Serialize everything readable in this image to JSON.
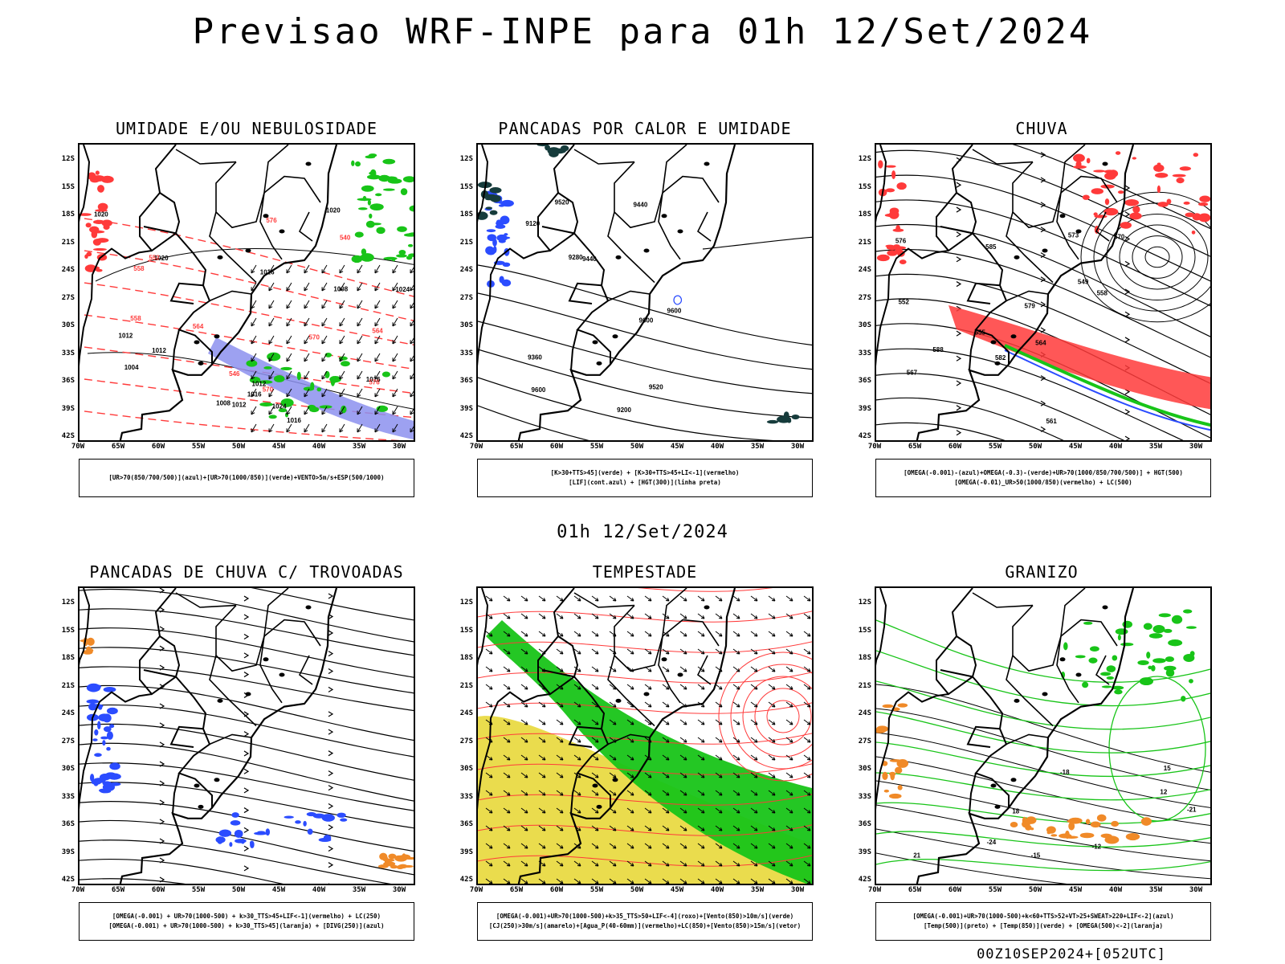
{
  "title": "Previsao WRF-INPE  para 01h 12/Set/2024",
  "mid_title": "01h 12/Set/2024",
  "footer": "00Z10SEP2024+[052UTC]",
  "axes": {
    "lat_ticks": [
      "12S",
      "15S",
      "18S",
      "21S",
      "24S",
      "27S",
      "30S",
      "33S",
      "36S",
      "39S",
      "42S"
    ],
    "lon_ticks": [
      "70W",
      "65W",
      "60W",
      "55W",
      "50W",
      "45W",
      "40W",
      "35W",
      "30W"
    ]
  },
  "colors": {
    "blue": "#2b4cff",
    "green": "#18c418",
    "red": "#ff3a3a",
    "yellow": "#e6d62e",
    "orange": "#f08a28",
    "lavender": "#8c90ee",
    "darkteal": "#163c3c"
  },
  "panels": [
    {
      "id": "umidade",
      "title": "UMIDADE E/OU NEBULOSIDADE",
      "legend": [
        "[UR>70(850/700/500)](azul)+[UR>70(1000/850)](verde)+VENTO>5m/s+ESP(500/1000)"
      ],
      "contour_labels": [
        "1008",
        "1012",
        "1016",
        "1020",
        "1024",
        "1004",
        "1016",
        "1012",
        "1008",
        "1020",
        "1012",
        "1016",
        "1012",
        "1016",
        "1020",
        "1024"
      ],
      "red_labels": [
        "576",
        "570",
        "564",
        "558",
        "552",
        "546",
        "540",
        "576",
        "570",
        "564",
        "558"
      ]
    },
    {
      "id": "pancadas-calor",
      "title": "PANCADAS POR CALOR E UMIDADE",
      "legend": [
        "[K>30+TTS>45](verde) + [K>30+TTS>45+LI<-1](vermelho)",
        "[LIF](cont.azul) + [HGT(300)](linha preta)"
      ],
      "contour_labels": [
        "9600",
        "9600",
        "9600",
        "9520",
        "9440",
        "9520",
        "9360",
        "9440",
        "9280",
        "9200",
        "9120"
      ]
    },
    {
      "id": "chuva",
      "title": "CHUVA",
      "legend": [
        "[OMEGA(-0.001)-(azul)+OMEGA(-0.3)-(verde)+UR>70(1000/850/700/500)] + HGT(500)",
        "[OMEGA(-0.01)_UR>50(1000/850)(vermelho) + LC(500)"
      ],
      "contour_labels": [
        "588",
        "585",
        "582",
        "579",
        "576",
        "573",
        "570",
        "567",
        "564",
        "561",
        "558",
        "555",
        "552",
        "549"
      ]
    },
    {
      "id": "trovoadas",
      "title": "PANCADAS DE CHUVA C/ TROVOADAS",
      "legend": [
        "[OMEGA(-0.001) + UR>70(1000-500) + k>30_TTS>45+LIF<-1](vermelho) + LC(250)",
        "[OMEGA(-0.001) + UR>70(1000-500) + k>30_TTS>45](laranja) + [DIVG(250)](azul)"
      ]
    },
    {
      "id": "tempestade",
      "title": "TEMPESTADE",
      "legend": [
        "[OMEGA(-0.001)+UR>70(1000-500)+k>35_TTS>50+LIF<-4](roxo)+[Vento(850)>10m/s](verde)",
        "[CJ(250)>30m/s](amarelo)+[Agua_P(40-60mm)](vermelho)+LC(850)+[Vento(850)>15m/s](vetor)"
      ]
    },
    {
      "id": "granizo",
      "title": "GRANIZO",
      "legend": [
        "[OMEGA(-0.001)+UR>70(1000-500)+k<60+TTS>52+VT>25+SWEAT>220+LIF<-2](azul)",
        "[Temp(500)](preto) + [Temp(850)](verde) + [OMEGA(500)<-2](laranja)"
      ],
      "contour_labels": [
        "-21",
        "-18",
        "-15",
        "-12",
        "-24",
        "12",
        "15",
        "18",
        "21"
      ]
    }
  ]
}
